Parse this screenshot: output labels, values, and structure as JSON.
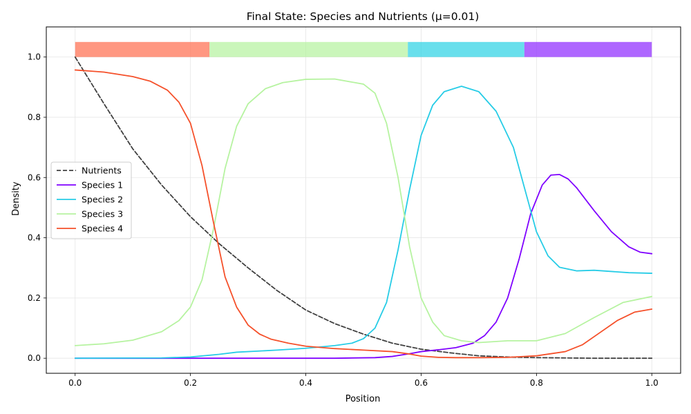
{
  "chart_data": {
    "type": "line",
    "title": "Final State: Species and Nutrients (μ=0.01)",
    "xlabel": "Position",
    "ylabel": "Density",
    "xlim": [
      -0.05,
      1.05
    ],
    "ylim": [
      -0.05,
      1.1
    ],
    "xticks": [
      "0.0",
      "0.2",
      "0.4",
      "0.6",
      "0.8",
      "1.0"
    ],
    "yticks": [
      "0.0",
      "0.2",
      "0.4",
      "0.6",
      "0.8",
      "1.0"
    ],
    "grid": true,
    "legend_position": "center-left",
    "territory_bar": {
      "y_range": [
        1.0,
        1.05
      ],
      "segments": [
        {
          "from": 0.0,
          "to": 0.233,
          "color": "#FF6F50"
        },
        {
          "from": 0.233,
          "to": 0.577,
          "color": "#B6F3A0"
        },
        {
          "from": 0.577,
          "to": 0.779,
          "color": "#2ED2E4"
        },
        {
          "from": 0.779,
          "to": 1.0,
          "color": "#8F2BFF"
        }
      ]
    },
    "series": [
      {
        "name": "Nutrients",
        "color": "#404040",
        "dash": true,
        "x": [
          0.0,
          0.05,
          0.1,
          0.15,
          0.2,
          0.25,
          0.3,
          0.35,
          0.4,
          0.45,
          0.5,
          0.55,
          0.6,
          0.65,
          0.7,
          0.75,
          0.8,
          0.85,
          0.9,
          0.95,
          1.0
        ],
        "y": [
          1.0,
          0.845,
          0.695,
          0.575,
          0.47,
          0.38,
          0.3,
          0.225,
          0.16,
          0.115,
          0.08,
          0.05,
          0.03,
          0.018,
          0.008,
          0.004,
          0.002,
          0.001,
          0.0,
          0.0,
          0.0
        ]
      },
      {
        "name": "Species 1",
        "color": "#7F00FF",
        "dash": false,
        "x": [
          0.0,
          0.45,
          0.52,
          0.55,
          0.58,
          0.6,
          0.63,
          0.66,
          0.69,
          0.71,
          0.73,
          0.75,
          0.77,
          0.79,
          0.81,
          0.825,
          0.84,
          0.855,
          0.87,
          0.9,
          0.93,
          0.96,
          0.98,
          1.0
        ],
        "y": [
          0.0,
          0.0,
          0.002,
          0.006,
          0.015,
          0.022,
          0.028,
          0.035,
          0.05,
          0.075,
          0.12,
          0.2,
          0.33,
          0.48,
          0.575,
          0.608,
          0.61,
          0.595,
          0.565,
          0.49,
          0.42,
          0.37,
          0.352,
          0.347
        ]
      },
      {
        "name": "Species 2",
        "color": "#26CCE6",
        "dash": false,
        "x": [
          0.0,
          0.15,
          0.2,
          0.25,
          0.28,
          0.35,
          0.4,
          0.45,
          0.48,
          0.5,
          0.52,
          0.54,
          0.56,
          0.58,
          0.6,
          0.62,
          0.64,
          0.67,
          0.7,
          0.73,
          0.76,
          0.78,
          0.8,
          0.82,
          0.84,
          0.87,
          0.9,
          0.93,
          0.96,
          1.0
        ],
        "y": [
          0.0,
          0.001,
          0.004,
          0.013,
          0.02,
          0.027,
          0.033,
          0.042,
          0.05,
          0.065,
          0.1,
          0.185,
          0.36,
          0.56,
          0.74,
          0.84,
          0.885,
          0.903,
          0.885,
          0.82,
          0.7,
          0.56,
          0.42,
          0.34,
          0.302,
          0.29,
          0.292,
          0.288,
          0.284,
          0.282
        ]
      },
      {
        "name": "Species 3",
        "color": "#B6F3A0",
        "dash": false,
        "x": [
          0.0,
          0.05,
          0.1,
          0.15,
          0.18,
          0.2,
          0.22,
          0.24,
          0.26,
          0.28,
          0.3,
          0.33,
          0.36,
          0.4,
          0.45,
          0.5,
          0.52,
          0.54,
          0.56,
          0.58,
          0.6,
          0.62,
          0.64,
          0.67,
          0.7,
          0.75,
          0.8,
          0.85,
          0.9,
          0.95,
          1.0
        ],
        "y": [
          0.042,
          0.048,
          0.06,
          0.088,
          0.125,
          0.17,
          0.26,
          0.43,
          0.63,
          0.77,
          0.845,
          0.895,
          0.915,
          0.926,
          0.927,
          0.91,
          0.88,
          0.78,
          0.6,
          0.37,
          0.2,
          0.12,
          0.075,
          0.058,
          0.052,
          0.058,
          0.058,
          0.082,
          0.135,
          0.185,
          0.205
        ]
      },
      {
        "name": "Species 4",
        "color": "#F5502A",
        "dash": false,
        "x": [
          0.0,
          0.05,
          0.1,
          0.13,
          0.16,
          0.18,
          0.2,
          0.22,
          0.24,
          0.26,
          0.28,
          0.3,
          0.32,
          0.34,
          0.37,
          0.4,
          0.45,
          0.5,
          0.55,
          0.58,
          0.6,
          0.63,
          0.66,
          0.7,
          0.75,
          0.8,
          0.85,
          0.88,
          0.91,
          0.94,
          0.97,
          1.0
        ],
        "y": [
          0.957,
          0.95,
          0.935,
          0.92,
          0.89,
          0.85,
          0.78,
          0.64,
          0.45,
          0.27,
          0.17,
          0.11,
          0.08,
          0.063,
          0.05,
          0.04,
          0.032,
          0.027,
          0.022,
          0.014,
          0.007,
          0.003,
          0.002,
          0.002,
          0.003,
          0.008,
          0.022,
          0.045,
          0.085,
          0.125,
          0.153,
          0.163
        ]
      }
    ]
  }
}
